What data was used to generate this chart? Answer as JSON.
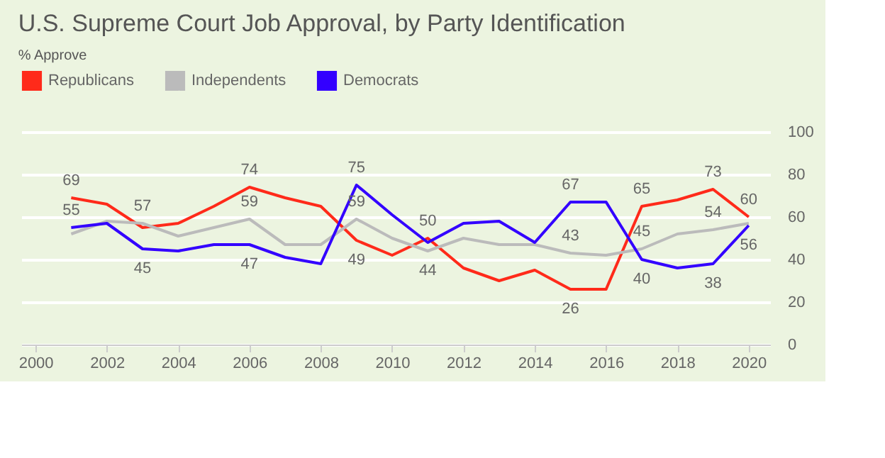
{
  "chart_data": {
    "type": "line",
    "title": "U.S. Supreme Court Job Approval, by Party Identification",
    "subtitle": "% Approve",
    "x": [
      2001,
      2002,
      2003,
      2004,
      2005,
      2006,
      2007,
      2008,
      2009,
      2010,
      2011,
      2012,
      2013,
      2014,
      2015,
      2016,
      2017,
      2018,
      2019,
      2020
    ],
    "series": [
      {
        "name": "Republicans",
        "color": "#ff2a1a",
        "values": [
          69,
          66,
          55,
          57,
          65,
          74,
          69,
          65,
          49,
          42,
          50,
          36,
          30,
          35,
          26,
          26,
          65,
          68,
          73,
          60
        ],
        "value_labels": [
          "69",
          null,
          null,
          null,
          null,
          "74",
          null,
          null,
          "49",
          null,
          "50",
          null,
          null,
          null,
          "26",
          null,
          "65",
          null,
          "73",
          "60"
        ]
      },
      {
        "name": "Independents",
        "color": "#bbbbbb",
        "values": [
          52,
          58,
          57,
          51,
          55,
          59,
          47,
          47,
          59,
          50,
          44,
          50,
          47,
          47,
          43,
          42,
          45,
          52,
          54,
          57
        ],
        "value_labels": [
          null,
          null,
          "57",
          null,
          null,
          "59",
          null,
          null,
          "59",
          null,
          "44",
          null,
          null,
          null,
          "43",
          null,
          "45",
          null,
          "54",
          null
        ]
      },
      {
        "name": "Democrats",
        "color": "#3300ff",
        "values": [
          55,
          57,
          45,
          44,
          47,
          47,
          41,
          38,
          75,
          61,
          48,
          57,
          58,
          48,
          67,
          67,
          40,
          36,
          38,
          56
        ],
        "value_labels": [
          "55",
          null,
          "45",
          null,
          null,
          "47",
          null,
          null,
          "75",
          null,
          null,
          null,
          null,
          null,
          "67",
          null,
          "40",
          null,
          "38",
          "56"
        ]
      }
    ],
    "xlim": [
      1999.6,
      2020.6
    ],
    "xticks": [
      2000,
      2002,
      2004,
      2006,
      2008,
      2010,
      2012,
      2014,
      2016,
      2018,
      2020
    ],
    "ylim": [
      0,
      100
    ],
    "yticks": [
      0,
      20,
      40,
      60,
      80,
      100
    ],
    "grid": "y",
    "legend": "top left",
    "marker": "none",
    "line_style": "solid"
  }
}
